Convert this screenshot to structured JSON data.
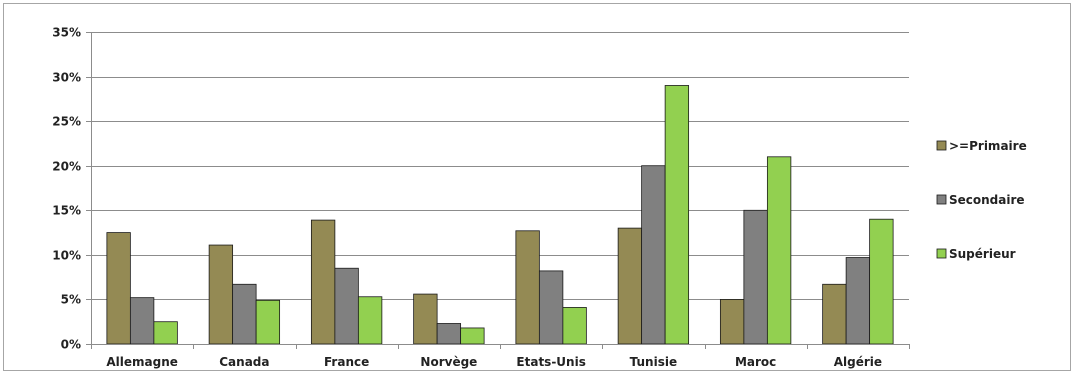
{
  "chart_data": {
    "type": "bar",
    "title": "",
    "xlabel": "",
    "ylabel": "",
    "ylim": [
      0,
      35
    ],
    "y_tick_values": [
      0,
      5,
      10,
      15,
      20,
      25,
      30,
      35
    ],
    "y_tick_labels": [
      "0%",
      "5%",
      "10%",
      "15%",
      "20%",
      "25%",
      "30%",
      "35%"
    ],
    "grid": true,
    "legend_position": "right",
    "categories": [
      "Allemagne",
      "Canada",
      "France",
      "Norvège",
      "Etats-Unis",
      "Tunisie",
      "Maroc",
      "Algérie"
    ],
    "series": [
      {
        "name": ">=Primaire",
        "color": "#948a54",
        "values": [
          12.5,
          11.1,
          13.9,
          5.6,
          12.7,
          13.0,
          5.0,
          6.7
        ]
      },
      {
        "name": "Secondaire",
        "color": "#808080",
        "values": [
          5.2,
          6.7,
          8.5,
          2.3,
          8.2,
          20.0,
          15.0,
          9.7
        ]
      },
      {
        "name": "Supérieur",
        "color": "#92d050",
        "values": [
          2.5,
          4.9,
          5.3,
          1.8,
          4.1,
          29.0,
          21.0,
          14.0
        ]
      }
    ]
  }
}
